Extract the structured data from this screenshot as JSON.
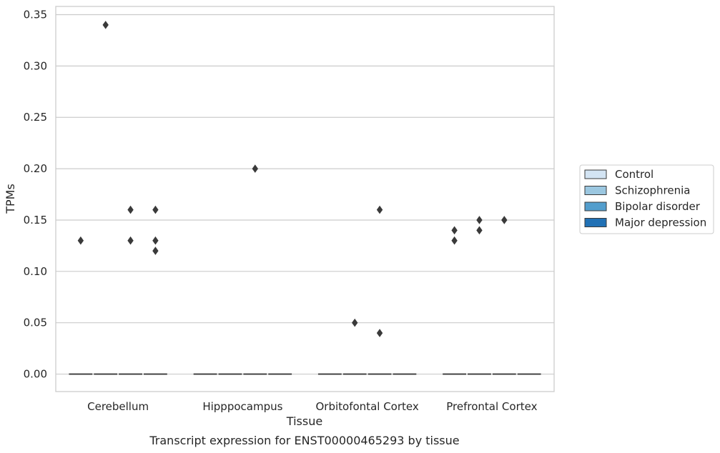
{
  "chart_data": {
    "type": "boxplot",
    "title": "",
    "caption": "Transcript expression for ENST00000465293 by tissue",
    "xlabel": "Tissue",
    "ylabel": "TPMs",
    "ylim": [
      -0.017,
      0.358
    ],
    "yticks": [
      "0.00",
      "0.05",
      "0.10",
      "0.15",
      "0.20",
      "0.25",
      "0.30",
      "0.35"
    ],
    "ytick_values": [
      0,
      0.05,
      0.1,
      0.15,
      0.2,
      0.25,
      0.3,
      0.35
    ],
    "grid": "horizontal",
    "legend_position": "right",
    "categories": [
      "Cerebellum",
      "Hipppocampus",
      "Orbitofontal Cortex",
      "Prefrontal Cortex"
    ],
    "series": [
      {
        "name": "Control",
        "color": "#d3e4f3"
      },
      {
        "name": "Schizophrenia",
        "color": "#9bc7e0"
      },
      {
        "name": "Bipolar disorder",
        "color": "#539ecd"
      },
      {
        "name": "Major depression",
        "color": "#2171b5"
      }
    ],
    "boxes": [
      {
        "category": "Cerebellum",
        "median": 0,
        "q1": 0,
        "q3": 0,
        "outliers": [
          [
            0.13
          ],
          [
            0.34
          ],
          [
            0.16,
            0.13
          ],
          [
            0.16,
            0.13,
            0.12
          ]
        ]
      },
      {
        "category": "Hipppocampus",
        "median": 0,
        "q1": 0,
        "q3": 0,
        "outliers": [
          [],
          [],
          [
            0.2
          ],
          []
        ]
      },
      {
        "category": "Orbitofontal Cortex",
        "median": 0,
        "q1": 0,
        "q3": 0,
        "outliers": [
          [],
          [
            0.05
          ],
          [
            0.16,
            0.04
          ],
          []
        ]
      },
      {
        "category": "Prefrontal Cortex",
        "median": 0,
        "q1": 0,
        "q3": 0,
        "outliers": [
          [
            0.14,
            0.13
          ],
          [
            0.15,
            0.14
          ],
          [
            0.15
          ],
          []
        ]
      }
    ],
    "outlier_color": "#3a3a3a"
  }
}
